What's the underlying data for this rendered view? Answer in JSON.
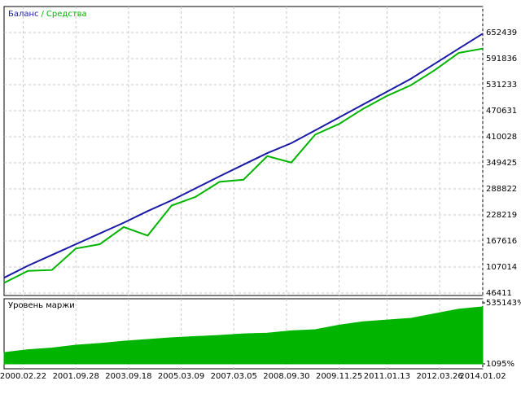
{
  "chart_data": [
    {
      "type": "line",
      "legend_separator": "/",
      "x": [
        0,
        5,
        10,
        15,
        20,
        25,
        30,
        35,
        40,
        45,
        50,
        55,
        60,
        65,
        70,
        75,
        80,
        85,
        90,
        95,
        100
      ],
      "xlim": [
        0,
        100
      ],
      "xticks": [
        {
          "value": 4,
          "label": "2000.02.22"
        },
        {
          "value": 15,
          "label": "2001.09.28"
        },
        {
          "value": 26,
          "label": "2003.09.18"
        },
        {
          "value": 37,
          "label": "2005.03.09"
        },
        {
          "value": 48,
          "label": "2007.03.05"
        },
        {
          "value": 59,
          "label": "2008.09.30"
        },
        {
          "value": 70,
          "label": "2009.11.25"
        },
        {
          "value": 80,
          "label": "2011.01.13"
        },
        {
          "value": 91,
          "label": "2012.03.26"
        },
        {
          "value": 100,
          "label": "2014.01.02"
        }
      ],
      "ylim": [
        40700,
        713000
      ],
      "yticks": [
        46411,
        107014,
        167616,
        228219,
        288822,
        349425,
        410028,
        470631,
        531233,
        591836,
        652439
      ],
      "grid": true,
      "series": [
        {
          "name": "Баланс",
          "color": "#1a1aa6",
          "values": [
            82000,
            110000,
            135000,
            160000,
            185000,
            210000,
            237000,
            262000,
            290000,
            318000,
            345000,
            372000,
            395000,
            425000,
            455000,
            485000,
            515000,
            545000,
            580000,
            615000,
            650000
          ]
        },
        {
          "name": "Средства",
          "color": "#00b400",
          "values": [
            70000,
            98000,
            100000,
            150000,
            160000,
            200000,
            180000,
            250000,
            270000,
            305000,
            310000,
            365000,
            350000,
            415000,
            440000,
            475000,
            505000,
            530000,
            565000,
            605000,
            615000
          ]
        }
      ]
    },
    {
      "type": "area",
      "x": [
        0,
        5,
        10,
        15,
        20,
        25,
        30,
        35,
        40,
        45,
        50,
        55,
        60,
        65,
        70,
        75,
        80,
        85,
        90,
        95,
        100
      ],
      "xlim": [
        0,
        100
      ],
      "ylim": [
        1095,
        535143
      ],
      "yticks": [
        {
          "value": 1095,
          "label": "1095%"
        },
        {
          "value": 535143,
          "label": "535143%"
        }
      ],
      "series": [
        {
          "name": "Уровень маржи",
          "color": "#00b400",
          "values": [
            100000,
            125000,
            140000,
            165000,
            180000,
            200000,
            215000,
            230000,
            240000,
            250000,
            264000,
            270000,
            290000,
            300000,
            340000,
            370000,
            385000,
            400000,
            440000,
            480000,
            500000
          ]
        }
      ]
    }
  ]
}
